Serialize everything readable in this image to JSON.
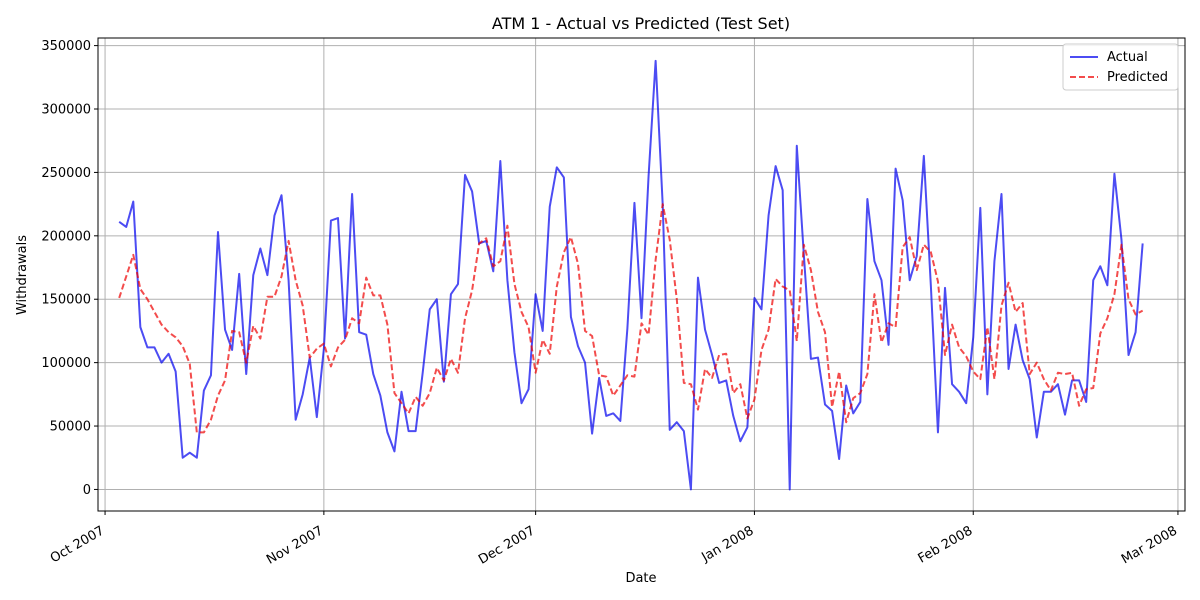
{
  "chart_data": {
    "type": "line",
    "title": "ATM 1 - Actual vs Predicted (Test Set)",
    "xlabel": "Date",
    "ylabel": "Withdrawals",
    "xlim": [
      "2007-09-30",
      "2008-03-02"
    ],
    "ylim": [
      -17000,
      356000
    ],
    "x_ticks": [
      {
        "date": "2007-10-01",
        "label": "Oct 2007"
      },
      {
        "date": "2007-11-01",
        "label": "Nov 2007"
      },
      {
        "date": "2007-12-01",
        "label": "Dec 2007"
      },
      {
        "date": "2008-01-01",
        "label": "Jan 2008"
      },
      {
        "date": "2008-02-01",
        "label": "Feb 2008"
      },
      {
        "date": "2008-03-01",
        "label": "Mar 2008"
      }
    ],
    "y_ticks": [
      0,
      50000,
      100000,
      150000,
      200000,
      250000,
      300000,
      350000
    ],
    "grid": true,
    "legend_position": "top-right",
    "series": [
      {
        "name": "Actual",
        "color": "#0000ee",
        "style": "solid",
        "start_date": "2007-10-03",
        "values": [
          211000,
          207000,
          227000,
          128000,
          112000,
          112000,
          100000,
          107000,
          93000,
          25000,
          29000,
          25000,
          78000,
          90000,
          203000,
          126000,
          110000,
          170000,
          91000,
          169000,
          190000,
          169000,
          216000,
          232000,
          165000,
          55000,
          75000,
          104000,
          57000,
          111000,
          212000,
          214000,
          119000,
          233000,
          124000,
          122000,
          91000,
          74000,
          45000,
          30000,
          77000,
          46000,
          46000,
          92000,
          142000,
          150000,
          85000,
          154000,
          162000,
          248000,
          235000,
          194000,
          196000,
          172000,
          259000,
          165000,
          108000,
          68000,
          79000,
          154000,
          125000,
          223000,
          254000,
          246000,
          136000,
          113000,
          100000,
          44000,
          88000,
          58000,
          60000,
          54000,
          127000,
          226000,
          135000,
          247000,
          338000,
          225000,
          47000,
          53000,
          46000,
          0,
          167000,
          126000,
          106000,
          84000,
          86000,
          58000,
          38000,
          49000,
          151000,
          142000,
          216000,
          255000,
          236000,
          0,
          271000,
          185000,
          103000,
          104000,
          67000,
          62000,
          24000,
          82000,
          60000,
          69000,
          229000,
          180000,
          165000,
          114000,
          253000,
          228000,
          165000,
          184000,
          263000,
          160000,
          45000,
          159000,
          83000,
          77000,
          68000,
          120000,
          222000,
          75000,
          180000,
          233000,
          95000,
          130000,
          102000,
          87000,
          41000,
          77000,
          77000,
          83000,
          59000,
          86000,
          86000,
          69000,
          165000,
          176000,
          161000,
          249000,
          197000,
          106000,
          124000,
          194000
        ]
      },
      {
        "name": "Predicted",
        "color": "#ee0000",
        "style": "dashed",
        "start_date": "2007-10-03",
        "values": [
          151000,
          168000,
          185000,
          158000,
          150000,
          140000,
          130000,
          124000,
          120000,
          113000,
          99000,
          45000,
          45000,
          55000,
          74000,
          86000,
          125000,
          124000,
          100000,
          129000,
          119000,
          152000,
          152000,
          168000,
          196000,
          165000,
          145000,
          104000,
          111000,
          115000,
          97000,
          112000,
          118000,
          135000,
          131000,
          167000,
          153000,
          153000,
          130000,
          76000,
          68000,
          60000,
          73000,
          66000,
          76000,
          96000,
          86000,
          103000,
          92000,
          135000,
          157000,
          194000,
          198000,
          176000,
          180000,
          208000,
          162000,
          140000,
          128000,
          92000,
          118000,
          107000,
          160000,
          187000,
          199000,
          178000,
          125000,
          121000,
          90000,
          89000,
          74000,
          82000,
          90000,
          89000,
          131000,
          122000,
          181000,
          225000,
          197000,
          150000,
          84000,
          83000,
          63000,
          95000,
          88000,
          106000,
          107000,
          76000,
          83000,
          56000,
          71000,
          110000,
          126000,
          166000,
          160000,
          157000,
          117000,
          193000,
          173000,
          140000,
          124000,
          65000,
          93000,
          53000,
          72000,
          76000,
          91000,
          154000,
          116000,
          131000,
          128000,
          191000,
          199000,
          173000,
          193000,
          187000,
          164000,
          106000,
          130000,
          112000,
          105000,
          93000,
          87000,
          128000,
          87000,
          145000,
          163000,
          140000,
          147000,
          91000,
          100000,
          87000,
          78000,
          92000,
          91000,
          92000,
          66000,
          79000,
          80000,
          123000,
          135000,
          154000,
          193000,
          150000,
          138000,
          141000
        ]
      }
    ]
  }
}
